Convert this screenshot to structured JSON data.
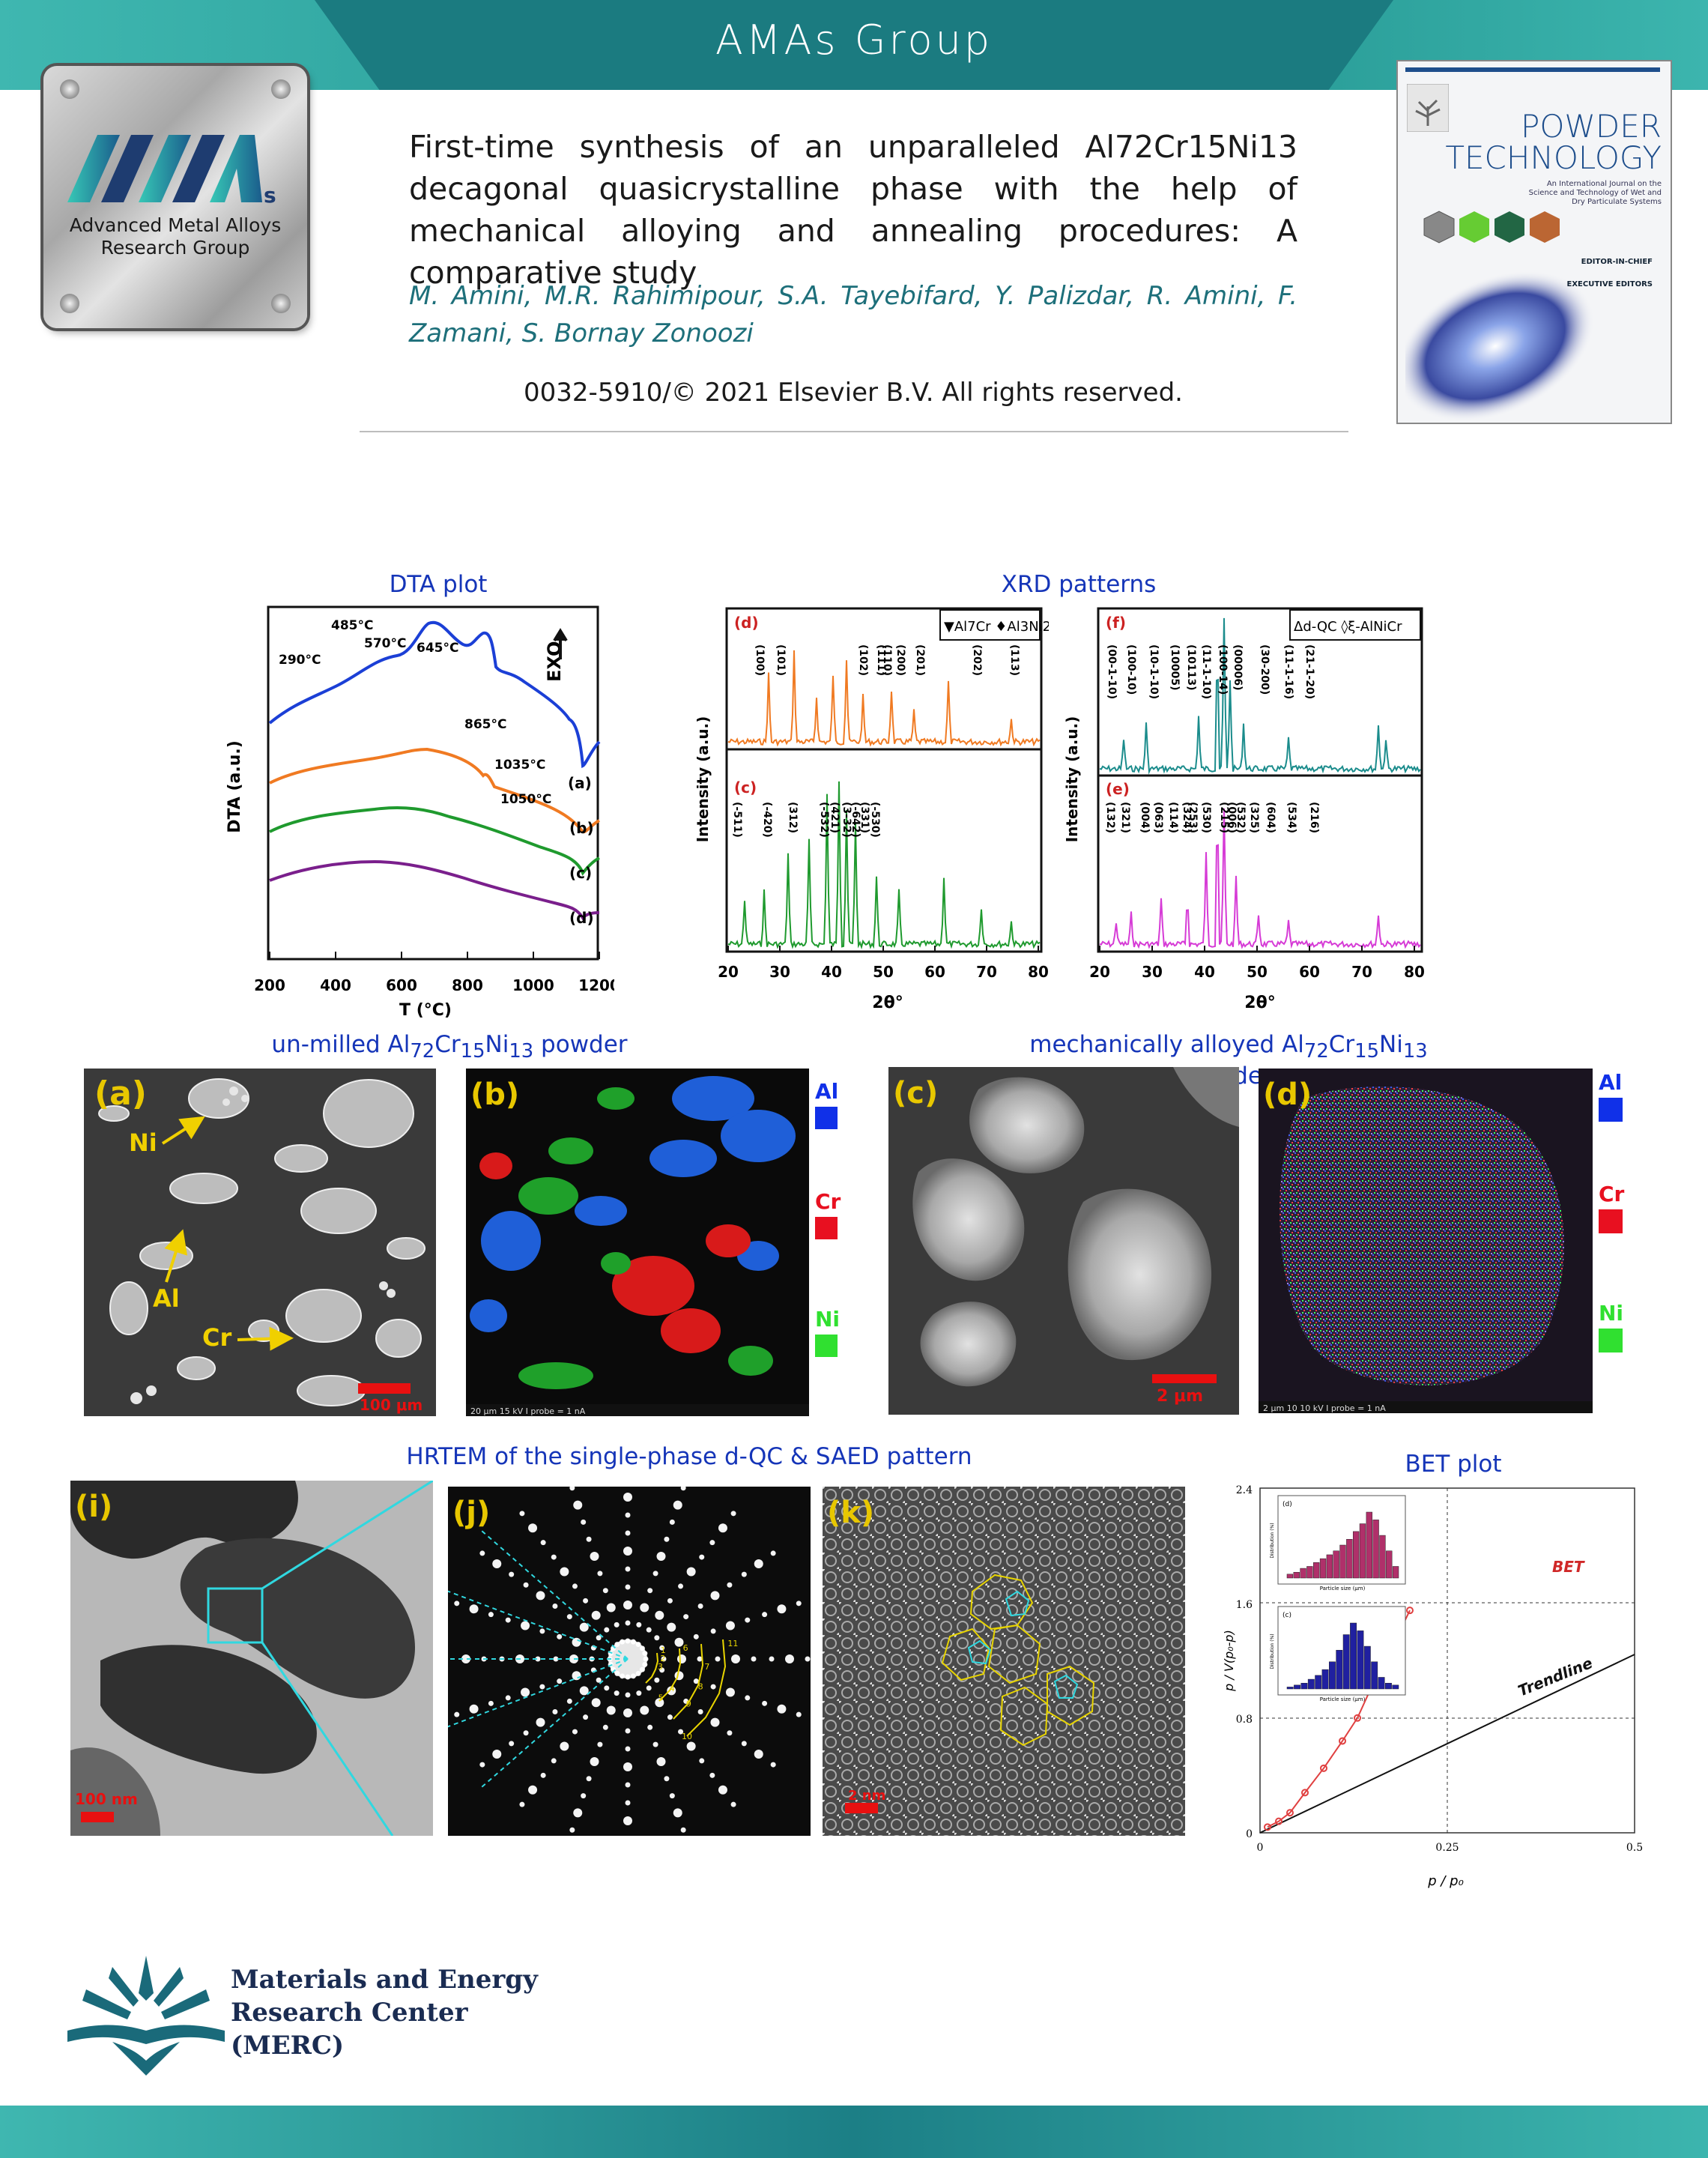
{
  "header": {
    "group_name": "AMAs Group"
  },
  "logo": {
    "line1": "Advanced Metal Alloys",
    "line2": "Research Group",
    "monogram_suffix": "s"
  },
  "paper": {
    "title": "First-time synthesis of an unparalleled Al72Cr15Ni13 decagonal quasicrystalline phase with the help of mechanical alloying and annealing procedures: A comparative study",
    "authors": "M. Amini, M.R. Rahimipour, S.A. Tayebifard, Y. Palizdar, R. Amini, F. Zamani, S. Bornay Zonoozi",
    "copyright": "0032-5910/© 2021 Elsevier B.V. All rights reserved."
  },
  "journal_cover": {
    "title_line1": "POWDER",
    "title_line2": "TECHNOLOGY",
    "subtitle": "An International Journal on the Science and Technology of Wet and Dry Particulate Systems",
    "editor_heading": "EDITOR-IN-CHIEF",
    "exec_heading": "EXECUTIVE EDITORS"
  },
  "sections": {
    "dta": "DTA plot",
    "xrd": "XRD patterns",
    "unmilled_pre": "un-milled Al",
    "unmilled_s1": "72",
    "unmilled_cr": "Cr",
    "unmilled_s2": "15",
    "unmilled_ni": "Ni",
    "unmilled_s3": "13",
    "unmilled_post": " powder",
    "alloyed_pre": "mechanically alloyed Al",
    "alloyed_s1": "72",
    "alloyed_cr": "Cr",
    "alloyed_s2": "15",
    "alloyed_ni": "Ni",
    "alloyed_s3": "13",
    "alloyed_post": " powder",
    "hrtem": "HRTEM of the single-phase d-QC & SAED pattern",
    "bet": "BET plot"
  },
  "dta_chart": {
    "ylabel": "DTA (a.u.)",
    "xlabel": "T (°C)",
    "exo_label": "EXO",
    "x_ticks": [
      "200",
      "400",
      "600",
      "800",
      "1000",
      "1200"
    ],
    "peaks": [
      "290°C",
      "485°C",
      "570°C",
      "645°C",
      "865°C",
      "1035°C",
      "1050°C"
    ],
    "curve_labels": [
      "(a)",
      "(b)",
      "(c)",
      "(d)"
    ],
    "colors": [
      "#1b3fd6",
      "#f07a22",
      "#1f9a2e",
      "#7a1f8c"
    ]
  },
  "xrd_left": {
    "ylabel": "Intensity (a.u.)",
    "xlabel": "2θ°",
    "legend": "▼Al7Cr ♦Al3Ni2",
    "panel_top": "(d)",
    "panel_bottom": "(c)",
    "x_ticks": [
      "20",
      "30",
      "40",
      "50",
      "60",
      "70",
      "80"
    ],
    "top_color": "#f07a22",
    "bottom_color": "#1f9a2e",
    "top_labels": [
      "(100)",
      "(101)",
      "(102)",
      "(110)",
      "(111)",
      "(200)",
      "(201)",
      "(202)",
      "(113)"
    ],
    "bottom_labels": [
      "(-511)",
      "(-420)",
      "(312)",
      "(-532)",
      "(421)",
      "(3-32)",
      "(-642)",
      "(331)",
      "(-530)"
    ]
  },
  "xrd_right": {
    "ylabel": "Intensity (a.u.)",
    "xlabel": "2θ°",
    "legend": "Δd-QC ◊ξ-AlNiCr",
    "panel_top": "(f)",
    "panel_bottom": "(e)",
    "x_ticks": [
      "20",
      "30",
      "40",
      "50",
      "60",
      "70",
      "80"
    ],
    "top_color": "#1b8c8c",
    "bottom_color": "#d63bd6",
    "top_labels": [
      "(00-1-10)",
      "(100-10)",
      "(10-1-10)",
      "(10005)",
      "(10113)",
      "(11-1-10)",
      "(100-14)",
      "(00006)",
      "(30-200)",
      "(11-1-16)",
      "(21-1-20)"
    ],
    "bottom_labels": [
      "(132)",
      "(321)",
      "(004)",
      "(063)",
      "(114)",
      "(253)",
      "(530)",
      "(324)",
      "(215)",
      "(006)",
      "(532)",
      "(325)",
      "(604)",
      "(534)",
      "(216)"
    ]
  },
  "sem_a": {
    "label": "(a)",
    "ni": "Ni",
    "al": "Al",
    "cr": "Cr",
    "scale": "100 μm"
  },
  "map_b": {
    "label": "(b)",
    "footer": "20 μm    15 kV   I probe = 1 nA"
  },
  "sem_c": {
    "label": "(c)",
    "scale": "2 μm"
  },
  "map_d": {
    "label": "(d)",
    "footer": "2 μm    10 10 kV   I probe = 1 nA"
  },
  "legend_elements": [
    {
      "name": "Al",
      "color": "#1030e8"
    },
    {
      "name": "Cr",
      "color": "#e81020"
    },
    {
      "name": "Ni",
      "color": "#30e030"
    }
  ],
  "tem_i": {
    "label": "(i)",
    "scale": "100 nm"
  },
  "saed_j": {
    "label": "(j)",
    "ring_numbers": [
      "1",
      "2",
      "3",
      "4",
      "5",
      "6",
      "7",
      "8",
      "9",
      "10",
      "11"
    ]
  },
  "hrtem_k": {
    "label": "(k)",
    "scale": "2 nm"
  },
  "bet_chart": {
    "ylabel": "p / V(p₀-p)",
    "xlabel": "p / p₀",
    "x_ticks": [
      "0",
      "0.25",
      "0.5"
    ],
    "y_ticks": [
      "0",
      "0.8",
      "1.6",
      "2.4"
    ],
    "bet_label": "BET",
    "trend_label": "Trendline",
    "inset_d_label": "(d)",
    "inset_c_label": "(c)",
    "inset_xlabel": "Particle size (μm)",
    "inset_ylabel": "Distribution (%)"
  },
  "merc": {
    "line1": "Materials and Energy",
    "line2": "Research Center",
    "line3": "(MERC)"
  }
}
